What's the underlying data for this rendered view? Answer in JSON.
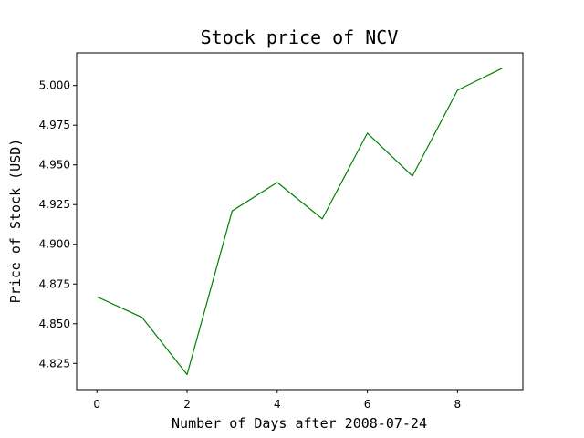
{
  "chart_data": {
    "type": "line",
    "title": "Stock price of NCV",
    "xlabel": "Number of Days after 2008-07-24",
    "ylabel": "Price of Stock (USD)",
    "x": [
      0,
      1,
      2,
      3,
      4,
      5,
      6,
      7,
      8,
      9
    ],
    "series": [
      {
        "values": [
          4.867,
          4.854,
          4.818,
          4.921,
          4.939,
          4.916,
          4.97,
          4.943,
          4.997,
          5.011
        ],
        "color": "#008000"
      }
    ],
    "xlim": [
      -0.45,
      9.45
    ],
    "ylim": [
      4.8085,
      5.0205
    ],
    "xticks": [
      0,
      2,
      4,
      6,
      8
    ],
    "xtick_labels": [
      "0",
      "2",
      "4",
      "6",
      "8"
    ],
    "yticks": [
      4.825,
      4.85,
      4.875,
      4.9,
      4.925,
      4.95,
      4.975,
      5.0
    ],
    "ytick_labels": [
      "4.825",
      "4.850",
      "4.875",
      "4.900",
      "4.925",
      "4.950",
      "4.975",
      "5.000"
    ],
    "grid": false,
    "legend": false
  }
}
